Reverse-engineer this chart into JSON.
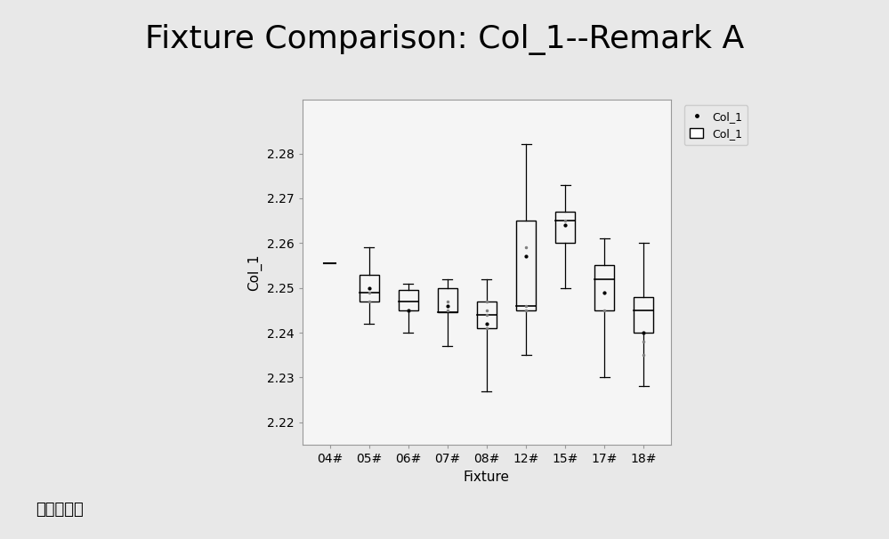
{
  "title": "Fixture Comparison: Col_1--Remark A",
  "xlabel": "Fixture",
  "ylabel": "Col_1",
  "categories": [
    "04#",
    "05#",
    "06#",
    "07#",
    "08#",
    "12#",
    "15#",
    "17#",
    "18#"
  ],
  "ylim": [
    2.215,
    2.292
  ],
  "yticks": [
    2.22,
    2.23,
    2.24,
    2.25,
    2.26,
    2.27,
    2.28
  ],
  "background_color": "#e8e8e8",
  "plot_bg_color": "#f5f5f5",
  "title_fontsize": 26,
  "footer_text": "图形生成器",
  "boxes": [
    {
      "label": "04#",
      "whisker_low": 2.2555,
      "q1": 2.2555,
      "median": 2.2555,
      "q3": 2.2555,
      "whisker_high": 2.2555,
      "mean": 2.2555,
      "fliers": [],
      "single_value": true
    },
    {
      "label": "05#",
      "whisker_low": 2.242,
      "q1": 2.247,
      "median": 2.249,
      "q3": 2.253,
      "whisker_high": 2.259,
      "mean": 2.25,
      "fliers": [
        2.247,
        2.249
      ],
      "single_value": false
    },
    {
      "label": "06#",
      "whisker_low": 2.24,
      "q1": 2.245,
      "median": 2.247,
      "q3": 2.2495,
      "whisker_high": 2.251,
      "mean": 2.245,
      "fliers": [
        2.245
      ],
      "single_value": false
    },
    {
      "label": "07#",
      "whisker_low": 2.237,
      "q1": 2.2445,
      "median": 2.2445,
      "q3": 2.25,
      "whisker_high": 2.252,
      "mean": 2.246,
      "fliers": [
        2.245,
        2.247
      ],
      "single_value": false
    },
    {
      "label": "08#",
      "whisker_low": 2.227,
      "q1": 2.241,
      "median": 2.244,
      "q3": 2.247,
      "whisker_high": 2.252,
      "mean": 2.242,
      "fliers": [
        2.241,
        2.244,
        2.245,
        2.247
      ],
      "single_value": false
    },
    {
      "label": "12#",
      "whisker_low": 2.235,
      "q1": 2.245,
      "median": 2.246,
      "q3": 2.265,
      "whisker_high": 2.282,
      "mean": 2.257,
      "fliers": [
        2.246,
        2.245,
        2.259
      ],
      "single_value": false
    },
    {
      "label": "15#",
      "whisker_low": 2.25,
      "q1": 2.26,
      "median": 2.265,
      "q3": 2.267,
      "whisker_high": 2.273,
      "mean": 2.264,
      "fliers": [
        2.264,
        2.265
      ],
      "single_value": false
    },
    {
      "label": "17#",
      "whisker_low": 2.23,
      "q1": 2.245,
      "median": 2.252,
      "q3": 2.255,
      "whisker_high": 2.261,
      "mean": 2.249,
      "fliers": [
        2.245,
        2.249
      ],
      "single_value": false
    },
    {
      "label": "18#",
      "whisker_low": 2.228,
      "q1": 2.24,
      "median": 2.245,
      "q3": 2.248,
      "whisker_high": 2.26,
      "mean": 2.24,
      "fliers": [
        2.24,
        2.238,
        2.235
      ],
      "single_value": false
    }
  ]
}
